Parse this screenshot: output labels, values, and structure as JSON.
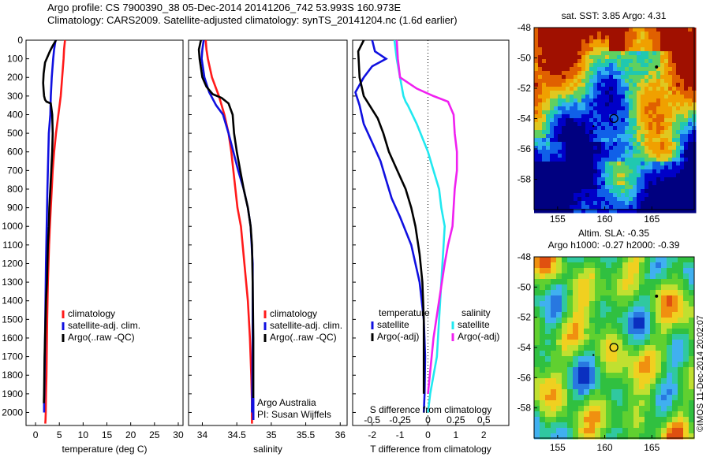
{
  "header": {
    "line1": "Argo profile: CS 7900390_38 05-Dec-2014 20141206_742 53.993S 160.973E",
    "line2": "Climatology: CARS2009. Satellite-adjusted climatology: synTS_20141204.nc (1.6d earlier)"
  },
  "colors": {
    "climatology": "#ff1a1a",
    "satellite": "#1010e0",
    "argo": "#000000",
    "sat_salinity": "#20e8f0",
    "argo_adj_salinity": "#f020f0"
  },
  "chart_data": [
    {
      "type": "line",
      "xlabel": "temperature (deg C)",
      "ylabel": "",
      "xlim": [
        -2,
        31
      ],
      "ylim": [
        2070,
        0
      ],
      "xticks": [
        0,
        5,
        10,
        15,
        20,
        25,
        30
      ],
      "yticks": [
        0,
        100,
        200,
        300,
        400,
        500,
        600,
        700,
        800,
        900,
        1000,
        1100,
        1200,
        1300,
        1400,
        1500,
        1600,
        1700,
        1800,
        1900,
        2000
      ],
      "legend": [
        "climatology",
        "satellite-adj. clim.",
        "Argo(..raw -QC)"
      ],
      "series": [
        {
          "name": "climatology",
          "color": "#ff1a1a",
          "x": [
            6.2,
            6.0,
            5.9,
            5.6,
            5.3,
            4.8,
            4.3,
            3.9,
            3.6,
            3.4,
            3.2,
            3.0,
            2.85,
            2.6,
            2.45,
            2.35,
            2.3,
            2.2,
            2.15,
            2.1,
            2.05
          ],
          "y": [
            0,
            50,
            100,
            200,
            300,
            400,
            500,
            600,
            700,
            800,
            900,
            1000,
            1100,
            1300,
            1500,
            1700,
            1800,
            1900,
            2000,
            2040,
            2060
          ]
        },
        {
          "name": "satellite-adj. clim.",
          "color": "#1010e0",
          "x": [
            4.2,
            3.9,
            3.7,
            3.4,
            3.2,
            3.1,
            2.8,
            2.7,
            2.6,
            2.5,
            2.35,
            2.2,
            2.1,
            2.0,
            1.9,
            1.85,
            1.8,
            1.8
          ],
          "y": [
            0,
            50,
            100,
            200,
            300,
            400,
            500,
            600,
            700,
            800,
            1000,
            1200,
            1400,
            1600,
            1800,
            1900,
            1950,
            2000
          ]
        },
        {
          "name": "Argo(..raw -QC)",
          "color": "#000000",
          "x": [
            4.3,
            3.6,
            3.0,
            2.0,
            1.7,
            1.6,
            1.7,
            1.8,
            2.0,
            2.3,
            3.2,
            3.5,
            3.6,
            3.5,
            3.3,
            3.1,
            2.9,
            2.8,
            2.6,
            2.5,
            2.4,
            2.2,
            2.1,
            2.0,
            1.9,
            1.85,
            1.8,
            1.75
          ],
          "y": [
            0,
            30,
            60,
            120,
            180,
            230,
            270,
            300,
            320,
            330,
            340,
            400,
            500,
            600,
            700,
            800,
            900,
            1000,
            1100,
            1200,
            1300,
            1400,
            1500,
            1600,
            1700,
            1800,
            1900,
            1950
          ]
        }
      ]
    },
    {
      "type": "line",
      "xlabel": "salinity",
      "xlim": [
        33.8,
        36.1
      ],
      "ylim": [
        2070,
        0
      ],
      "xticks": [
        34,
        34.5,
        35,
        35.5,
        36
      ],
      "legend": [
        "climatology",
        "satellite-adj. clim.",
        "Argo(..raw -QC)"
      ],
      "series": [
        {
          "name": "climatology",
          "color": "#ff1a1a",
          "x": [
            34.05,
            34.06,
            34.08,
            34.14,
            34.24,
            34.32,
            34.38,
            34.42,
            34.45,
            34.48,
            34.51,
            34.56,
            34.61,
            34.66,
            34.69,
            34.71,
            34.72,
            34.72
          ],
          "y": [
            0,
            50,
            100,
            200,
            300,
            400,
            500,
            600,
            700,
            800,
            900,
            1000,
            1200,
            1400,
            1600,
            1800,
            1950,
            2060
          ]
        },
        {
          "name": "satellite-adj. clim.",
          "color": "#1010e0",
          "x": [
            34.02,
            34.0,
            33.99,
            34.03,
            34.1,
            34.2,
            34.3,
            34.38,
            34.45,
            34.52,
            34.6,
            34.66,
            34.7,
            34.73,
            34.73,
            34.72
          ],
          "y": [
            0,
            50,
            100,
            200,
            280,
            350,
            400,
            500,
            600,
            700,
            800,
            900,
            1000,
            1200,
            1600,
            2000
          ]
        },
        {
          "name": "Argo(..raw -QC)",
          "color": "#000000",
          "x": [
            33.98,
            33.95,
            33.96,
            34.0,
            34.06,
            34.15,
            34.28,
            34.38,
            34.44,
            34.46,
            34.5,
            34.55,
            34.6,
            34.66,
            34.7,
            34.72,
            34.73,
            34.74,
            34.74
          ],
          "y": [
            0,
            50,
            100,
            200,
            250,
            290,
            310,
            340,
            400,
            500,
            600,
            700,
            800,
            900,
            1000,
            1100,
            1300,
            1600,
            1950
          ]
        }
      ],
      "annotations": [
        "Argo Australia",
        "PI: Susan Wijffels"
      ]
    },
    {
      "type": "line",
      "xlabel": "T difference from climatology",
      "x2label": "S difference from climatology",
      "xlim": [
        -2.7,
        2.9
      ],
      "ylim": [
        2070,
        0
      ],
      "xticks": [
        -2,
        -1,
        0,
        1,
        2
      ],
      "x2ticks": [
        -0.5,
        -0.25,
        0,
        0.25,
        0.5
      ],
      "x2tick_labels": [
        "-0.5",
        "-0.25",
        "0",
        "0.25",
        "0.5"
      ],
      "zero_line": "dotted",
      "legend": [
        "temperature",
        "satellite",
        "Argo(-adj)",
        "salinity",
        "satellite",
        "Argo(-adj)"
      ],
      "series": [
        {
          "name": "satellite",
          "group": "temperature",
          "color": "#1010e0",
          "x": [
            -2.0,
            -1.9,
            -1.5,
            -2.0,
            -2.3,
            -2.6,
            -2.45,
            -2.3,
            -2.0,
            -1.7,
            -1.5,
            -1.3,
            -1.0,
            -0.6,
            -0.3,
            -0.15,
            -0.1,
            -0.12,
            -0.15
          ],
          "y": [
            0,
            60,
            100,
            140,
            200,
            280,
            350,
            450,
            550,
            650,
            750,
            850,
            950,
            1100,
            1300,
            1500,
            1700,
            1900,
            2000
          ]
        },
        {
          "name": "Argo(-adj)",
          "group": "temperature",
          "color": "#000000",
          "x": [
            -2.3,
            -2.5,
            -2.45,
            -2.3,
            -1.8,
            -1.6,
            -1.4,
            -1.1,
            -0.8,
            -0.6,
            -0.45,
            -0.3,
            -0.2,
            -0.15,
            -0.15
          ],
          "y": [
            0,
            60,
            200,
            300,
            420,
            500,
            600,
            700,
            800,
            900,
            1000,
            1150,
            1300,
            1500,
            1900
          ]
        },
        {
          "name": "satellite",
          "group": "salinity",
          "color": "#20e8f0",
          "x": [
            -0.3,
            -0.28,
            -0.25,
            -0.22,
            -0.2,
            -0.18,
            -0.1,
            0.0,
            0.05,
            0.1,
            0.12,
            0.15,
            0.14,
            0.12,
            0.1,
            0.08,
            0.02,
            0.0
          ],
          "y": [
            0,
            100,
            200,
            300,
            330,
            350,
            450,
            600,
            700,
            800,
            900,
            1000,
            1100,
            1300,
            1500,
            1700,
            1900,
            2000
          ]
        },
        {
          "name": "Argo(-adj)",
          "group": "salinity",
          "color": "#f020f0",
          "x": [
            -0.28,
            -0.27,
            -0.25,
            -0.1,
            0.05,
            0.18,
            0.23,
            0.24,
            0.26,
            0.26,
            0.24,
            0.22,
            0.18,
            0.15,
            0.1,
            0.05,
            0.0
          ],
          "y": [
            0,
            100,
            200,
            260,
            300,
            330,
            400,
            500,
            600,
            700,
            800,
            1000,
            1100,
            1200,
            1400,
            1600,
            1900
          ]
        }
      ]
    },
    {
      "type": "heatmap",
      "title": "sat. SST: 3.85 Argo: 4.31",
      "xlim": [
        152.5,
        169.5
      ],
      "ylim": [
        -60,
        -48
      ],
      "xticks": [
        155,
        160,
        165
      ],
      "yticks": [
        -48,
        -50,
        -52,
        -54,
        -56,
        -58
      ],
      "marker_lon_lat": [
        160.973,
        -53.993
      ]
    },
    {
      "type": "heatmap",
      "title_line1": "Altim. SLA: -0.35",
      "title_line2": "Argo h1000: -0.27 h2000: -0.39",
      "xlim": [
        152.5,
        169.5
      ],
      "ylim": [
        -60,
        -48
      ],
      "xticks": [
        155,
        160,
        165
      ],
      "yticks": [
        -48,
        -50,
        -52,
        -54,
        -56,
        -58
      ],
      "marker_lon_lat": [
        160.973,
        -53.993
      ],
      "side_label": "©IMOS 11-Dec-2014 20:02:07"
    }
  ]
}
